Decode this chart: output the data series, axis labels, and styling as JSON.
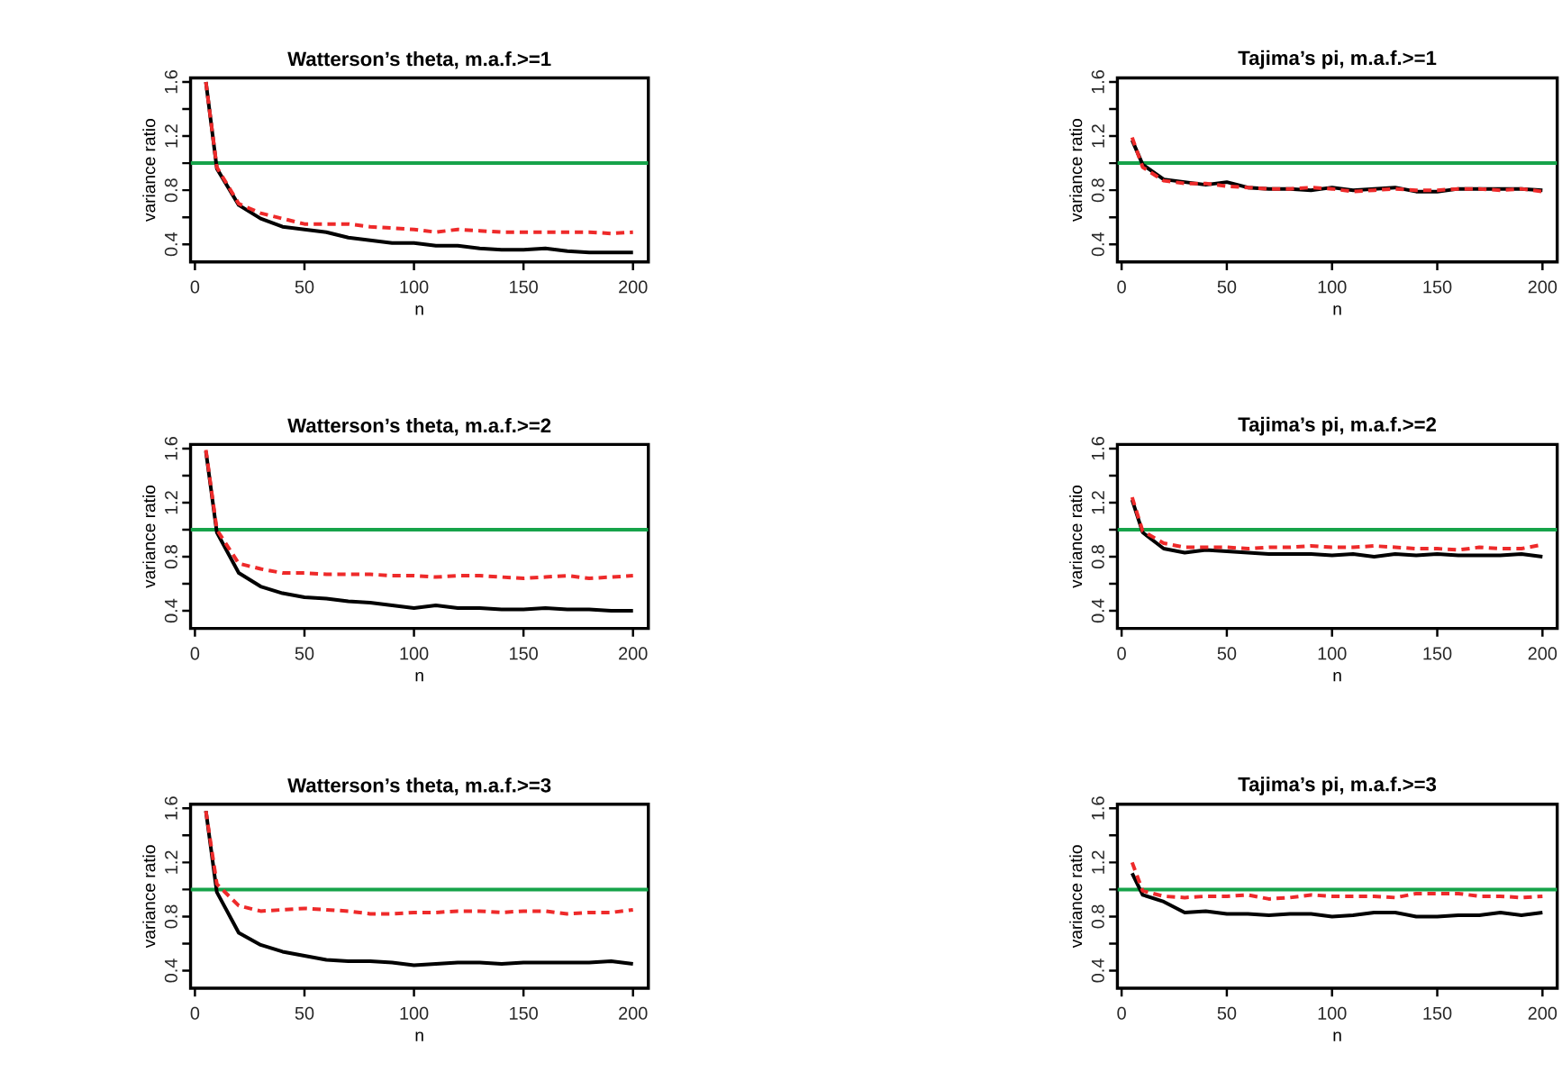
{
  "chart_data": [
    {
      "type": "line",
      "title": "Watterson’s theta, m.a.f.>=1",
      "xlabel": "n",
      "ylabel": "variance ratio",
      "x": [
        5,
        10,
        20,
        30,
        40,
        50,
        60,
        70,
        80,
        90,
        100,
        110,
        120,
        130,
        140,
        150,
        160,
        170,
        180,
        190,
        200
      ],
      "xlim": [
        -2,
        207
      ],
      "ylim": [
        0.27,
        1.63
      ],
      "xticks": [
        0,
        50,
        100,
        150,
        200
      ],
      "yticks": [
        0.4,
        {
          "value": 0.6,
          "label": null
        },
        0.8,
        {
          "value": 1.0,
          "label": null
        },
        1.2,
        {
          "value": 1.4,
          "label": null
        },
        1.6
      ],
      "series": [
        {
          "color": "#000000",
          "line_style": "solid",
          "values": [
            1.6,
            0.96,
            0.69,
            0.59,
            0.53,
            0.51,
            0.49,
            0.45,
            0.43,
            0.41,
            0.41,
            0.39,
            0.39,
            0.37,
            0.36,
            0.36,
            0.37,
            0.35,
            0.34,
            0.34,
            0.34
          ]
        },
        {
          "color": "#ee2a2a",
          "line_style": "dashed",
          "values": [
            1.6,
            0.97,
            0.7,
            0.63,
            0.59,
            0.55,
            0.55,
            0.55,
            0.53,
            0.52,
            0.51,
            0.49,
            0.51,
            0.5,
            0.49,
            0.49,
            0.49,
            0.49,
            0.49,
            0.48,
            0.49
          ]
        }
      ],
      "ref_lines": [
        {
          "axis": "y",
          "value": 1.0,
          "color": "#16a34a"
        }
      ]
    },
    {
      "type": "line",
      "title": "Tajima’s pi, m.a.f.>=1",
      "xlabel": "n",
      "ylabel": "variance ratio",
      "x": [
        5,
        10,
        20,
        30,
        40,
        50,
        60,
        70,
        80,
        90,
        100,
        110,
        120,
        130,
        140,
        150,
        160,
        170,
        180,
        190,
        200
      ],
      "xlim": [
        -2,
        207
      ],
      "ylim": [
        0.27,
        1.63
      ],
      "xticks": [
        0,
        50,
        100,
        150,
        200
      ],
      "yticks": [
        0.4,
        {
          "value": 0.6,
          "label": null
        },
        0.8,
        {
          "value": 1.0,
          "label": null
        },
        1.2,
        {
          "value": 1.4,
          "label": null
        },
        1.6
      ],
      "series": [
        {
          "color": "#000000",
          "line_style": "solid",
          "values": [
            1.17,
            0.99,
            0.88,
            0.86,
            0.84,
            0.86,
            0.82,
            0.81,
            0.81,
            0.8,
            0.82,
            0.8,
            0.81,
            0.82,
            0.79,
            0.79,
            0.81,
            0.81,
            0.81,
            0.81,
            0.8
          ]
        },
        {
          "color": "#ee2a2a",
          "line_style": "dashed",
          "values": [
            1.19,
            0.97,
            0.87,
            0.85,
            0.85,
            0.83,
            0.82,
            0.81,
            0.81,
            0.82,
            0.81,
            0.79,
            0.8,
            0.81,
            0.8,
            0.8,
            0.81,
            0.81,
            0.8,
            0.81,
            0.79
          ]
        }
      ],
      "ref_lines": [
        {
          "axis": "y",
          "value": 1.0,
          "color": "#16a34a"
        }
      ]
    },
    {
      "type": "line",
      "title": "Watterson’s theta, m.a.f.>=2",
      "xlabel": "n",
      "ylabel": "variance ratio",
      "x": [
        5,
        10,
        20,
        30,
        40,
        50,
        60,
        70,
        80,
        90,
        100,
        110,
        120,
        130,
        140,
        150,
        160,
        170,
        180,
        190,
        200
      ],
      "xlim": [
        -2,
        207
      ],
      "ylim": [
        0.27,
        1.63
      ],
      "xticks": [
        0,
        50,
        100,
        150,
        200
      ],
      "yticks": [
        0.4,
        {
          "value": 0.6,
          "label": null
        },
        0.8,
        {
          "value": 1.0,
          "label": null
        },
        1.2,
        {
          "value": 1.4,
          "label": null
        },
        1.6
      ],
      "series": [
        {
          "color": "#000000",
          "line_style": "solid",
          "values": [
            1.58,
            0.98,
            0.68,
            0.58,
            0.53,
            0.5,
            0.49,
            0.47,
            0.46,
            0.44,
            0.42,
            0.44,
            0.42,
            0.42,
            0.41,
            0.41,
            0.42,
            0.41,
            0.41,
            0.4,
            0.4
          ]
        },
        {
          "color": "#ee2a2a",
          "line_style": "dashed",
          "values": [
            1.59,
            1.0,
            0.75,
            0.71,
            0.68,
            0.68,
            0.67,
            0.67,
            0.67,
            0.66,
            0.66,
            0.65,
            0.66,
            0.66,
            0.65,
            0.64,
            0.65,
            0.66,
            0.64,
            0.65,
            0.66
          ]
        }
      ],
      "ref_lines": [
        {
          "axis": "y",
          "value": 1.0,
          "color": "#16a34a"
        }
      ]
    },
    {
      "type": "line",
      "title": "Tajima’s pi, m.a.f.>=2",
      "xlabel": "n",
      "ylabel": "variance ratio",
      "x": [
        5,
        10,
        20,
        30,
        40,
        50,
        60,
        70,
        80,
        90,
        100,
        110,
        120,
        130,
        140,
        150,
        160,
        170,
        180,
        190,
        200
      ],
      "xlim": [
        -2,
        207
      ],
      "ylim": [
        0.27,
        1.63
      ],
      "xticks": [
        0,
        50,
        100,
        150,
        200
      ],
      "yticks": [
        0.4,
        {
          "value": 0.6,
          "label": null
        },
        0.8,
        {
          "value": 1.0,
          "label": null
        },
        1.2,
        {
          "value": 1.4,
          "label": null
        },
        1.6
      ],
      "series": [
        {
          "color": "#000000",
          "line_style": "solid",
          "values": [
            1.22,
            0.98,
            0.86,
            0.83,
            0.85,
            0.84,
            0.83,
            0.82,
            0.82,
            0.82,
            0.81,
            0.82,
            0.8,
            0.82,
            0.81,
            0.82,
            0.81,
            0.81,
            0.81,
            0.82,
            0.8
          ]
        },
        {
          "color": "#ee2a2a",
          "line_style": "dashed",
          "values": [
            1.24,
            0.99,
            0.9,
            0.87,
            0.87,
            0.87,
            0.86,
            0.87,
            0.87,
            0.88,
            0.87,
            0.87,
            0.88,
            0.87,
            0.86,
            0.86,
            0.85,
            0.87,
            0.86,
            0.86,
            0.89
          ]
        }
      ],
      "ref_lines": [
        {
          "axis": "y",
          "value": 1.0,
          "color": "#16a34a"
        }
      ]
    },
    {
      "type": "line",
      "title": "Watterson’s theta, m.a.f.>=3",
      "xlabel": "n",
      "ylabel": "variance ratio",
      "x": [
        5,
        10,
        20,
        30,
        40,
        50,
        60,
        70,
        80,
        90,
        100,
        110,
        120,
        130,
        140,
        150,
        160,
        170,
        180,
        190,
        200
      ],
      "xlim": [
        -2,
        207
      ],
      "ylim": [
        0.27,
        1.63
      ],
      "xticks": [
        0,
        50,
        100,
        150,
        200
      ],
      "yticks": [
        0.4,
        {
          "value": 0.6,
          "label": null
        },
        0.8,
        {
          "value": 1.0,
          "label": null
        },
        1.2,
        {
          "value": 1.4,
          "label": null
        },
        1.6
      ],
      "series": [
        {
          "color": "#000000",
          "line_style": "solid",
          "values": [
            1.58,
            0.98,
            0.68,
            0.59,
            0.54,
            0.51,
            0.48,
            0.47,
            0.47,
            0.46,
            0.44,
            0.45,
            0.46,
            0.46,
            0.45,
            0.46,
            0.46,
            0.46,
            0.46,
            0.47,
            0.45
          ]
        },
        {
          "color": "#ee2a2a",
          "line_style": "dashed",
          "values": [
            1.58,
            1.04,
            0.88,
            0.84,
            0.85,
            0.86,
            0.85,
            0.84,
            0.82,
            0.82,
            0.83,
            0.83,
            0.84,
            0.84,
            0.83,
            0.84,
            0.84,
            0.82,
            0.83,
            0.83,
            0.85
          ]
        }
      ],
      "ref_lines": [
        {
          "axis": "y",
          "value": 1.0,
          "color": "#16a34a"
        }
      ]
    },
    {
      "type": "line",
      "title": "Tajima’s pi, m.a.f.>=3",
      "xlabel": "n",
      "ylabel": "variance ratio",
      "x": [
        5,
        10,
        20,
        30,
        40,
        50,
        60,
        70,
        80,
        90,
        100,
        110,
        120,
        130,
        140,
        150,
        160,
        170,
        180,
        190,
        200
      ],
      "xlim": [
        -2,
        207
      ],
      "ylim": [
        0.27,
        1.63
      ],
      "xticks": [
        0,
        50,
        100,
        150,
        200
      ],
      "yticks": [
        0.4,
        {
          "value": 0.6,
          "label": null
        },
        0.8,
        {
          "value": 1.0,
          "label": null
        },
        1.2,
        {
          "value": 1.4,
          "label": null
        },
        1.6
      ],
      "series": [
        {
          "color": "#000000",
          "line_style": "solid",
          "values": [
            1.12,
            0.96,
            0.91,
            0.83,
            0.84,
            0.82,
            0.82,
            0.81,
            0.82,
            0.82,
            0.8,
            0.81,
            0.83,
            0.83,
            0.8,
            0.8,
            0.81,
            0.81,
            0.83,
            0.81,
            0.83
          ]
        },
        {
          "color": "#ee2a2a",
          "line_style": "dashed",
          "values": [
            1.2,
            0.99,
            0.95,
            0.94,
            0.95,
            0.95,
            0.96,
            0.93,
            0.94,
            0.96,
            0.95,
            0.95,
            0.95,
            0.94,
            0.97,
            0.97,
            0.97,
            0.95,
            0.95,
            0.94,
            0.95
          ]
        }
      ],
      "ref_lines": [
        {
          "axis": "y",
          "value": 1.0,
          "color": "#16a34a"
        }
      ]
    }
  ]
}
